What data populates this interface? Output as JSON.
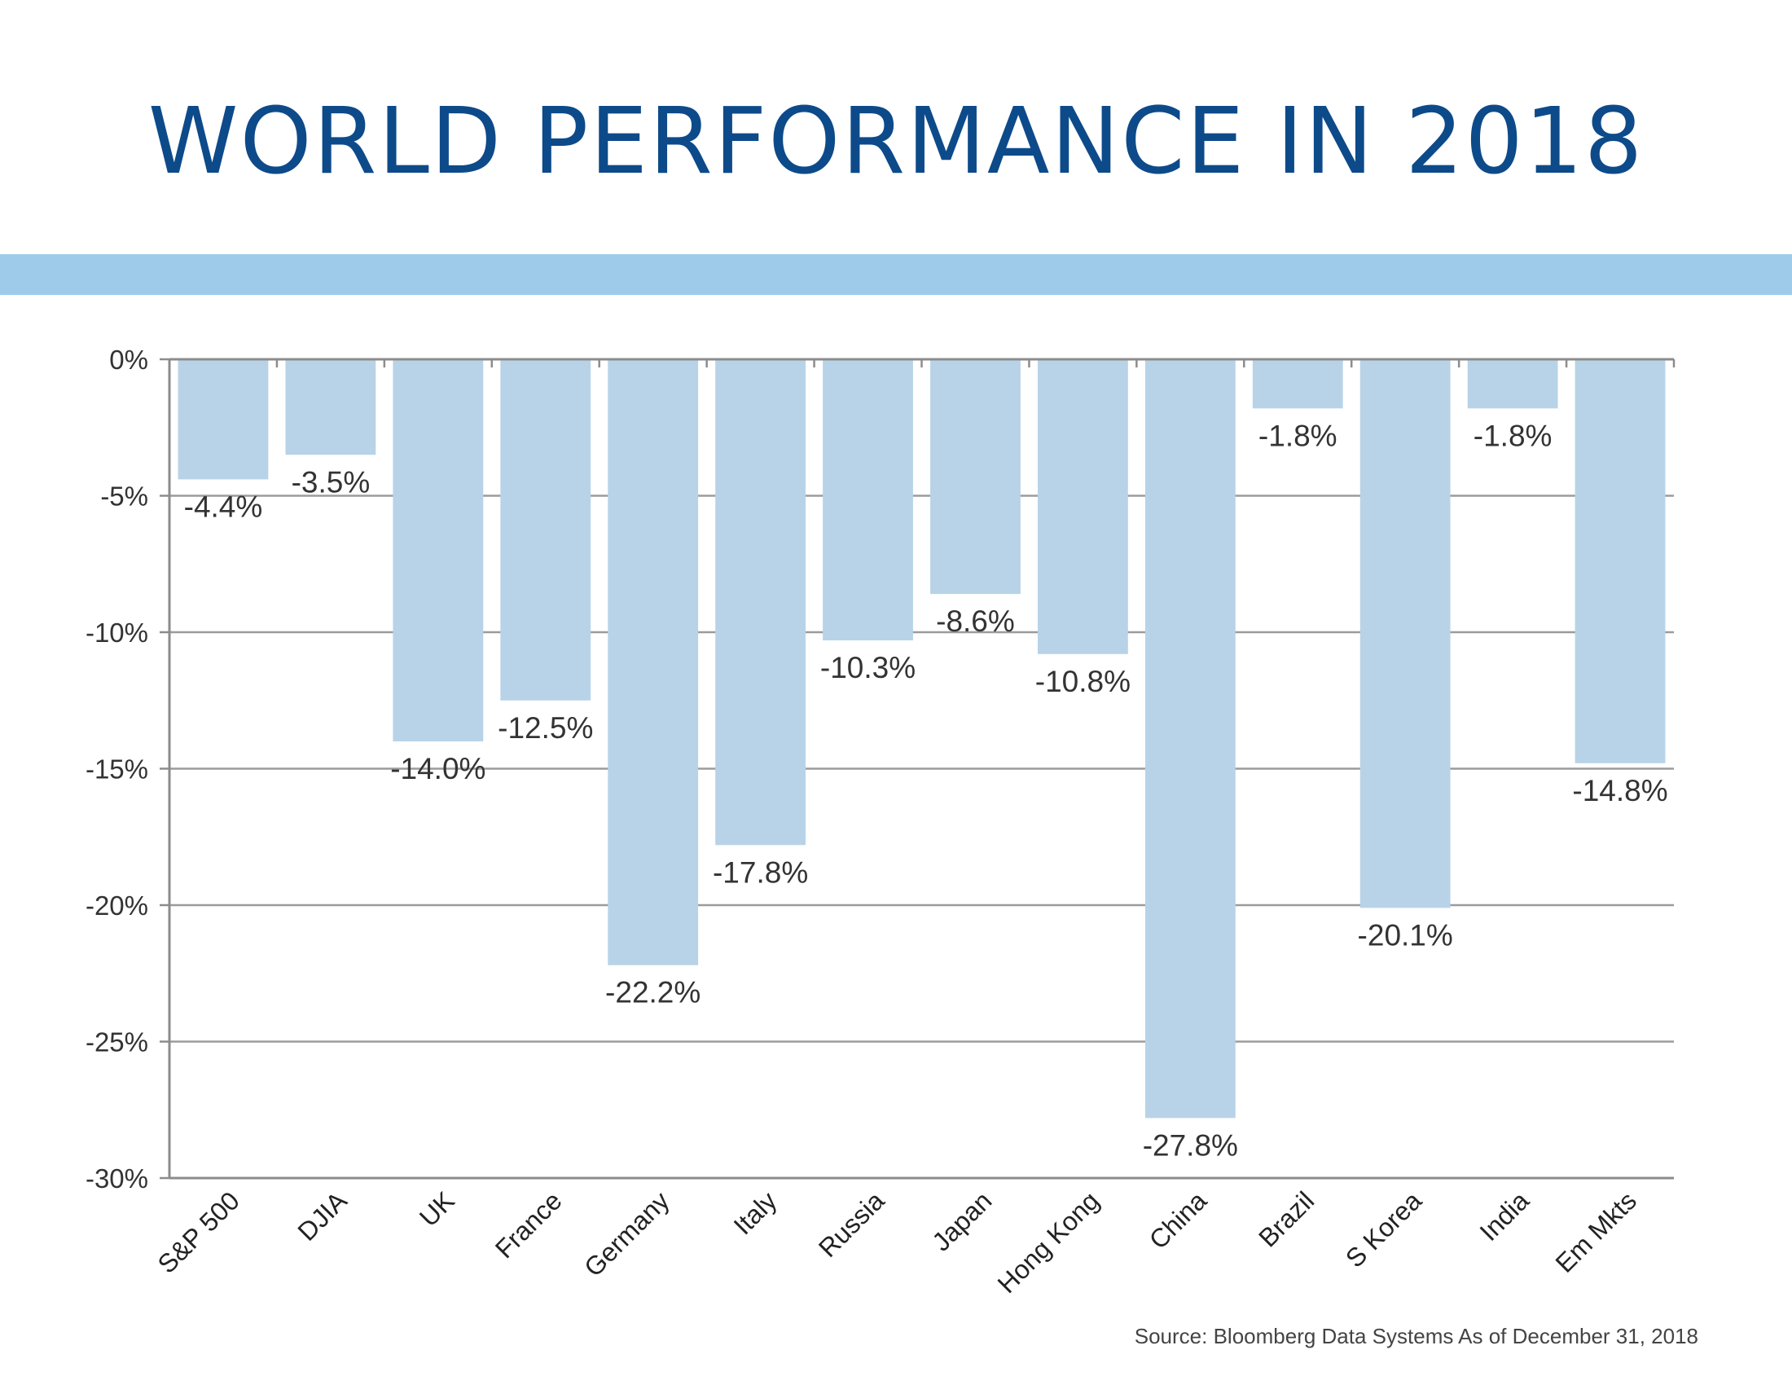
{
  "title": "WORLD PERFORMANCE IN 2018",
  "source": "Source:  Bloomberg Data Systems As of December 31, 2018",
  "colors": {
    "title": "#0d4a8a",
    "band": "#9fcbeb",
    "bar": "#b8d3e8",
    "grid": "#9b9b9b",
    "axis": "#8c8c8c",
    "text": "#333333"
  },
  "chart_data": {
    "type": "bar",
    "title": "",
    "xlabel": "",
    "ylabel": "",
    "categories": [
      "S&P 500",
      "DJIA",
      "UK",
      "France",
      "Germany",
      "Italy",
      "Russia",
      "Japan",
      "Hong Kong",
      "China",
      "Brazil",
      "S Korea",
      "India",
      "Em Mkts"
    ],
    "values": [
      -4.4,
      -3.5,
      -14.0,
      -12.5,
      -22.2,
      -17.8,
      -10.3,
      -8.6,
      -10.8,
      -27.8,
      -1.8,
      -20.1,
      -1.8,
      -14.8
    ],
    "data_labels": [
      "-4.4%",
      "-3.5%",
      "-14.0%",
      "-12.5%",
      "-22.2%",
      "-17.8%",
      "-10.3%",
      "-8.6%",
      "-10.8%",
      "-27.8%",
      "-1.8%",
      "-20.1%",
      "-1.8%",
      "-14.8%"
    ],
    "ylim": [
      -30,
      0
    ],
    "yticks": [
      0,
      -5,
      -10,
      -15,
      -20,
      -25,
      -30
    ],
    "ytick_labels": [
      "0%",
      "-5%",
      "-10%",
      "-15%",
      "-20%",
      "-25%",
      "-30%"
    ],
    "grid": true,
    "legend": "none"
  }
}
